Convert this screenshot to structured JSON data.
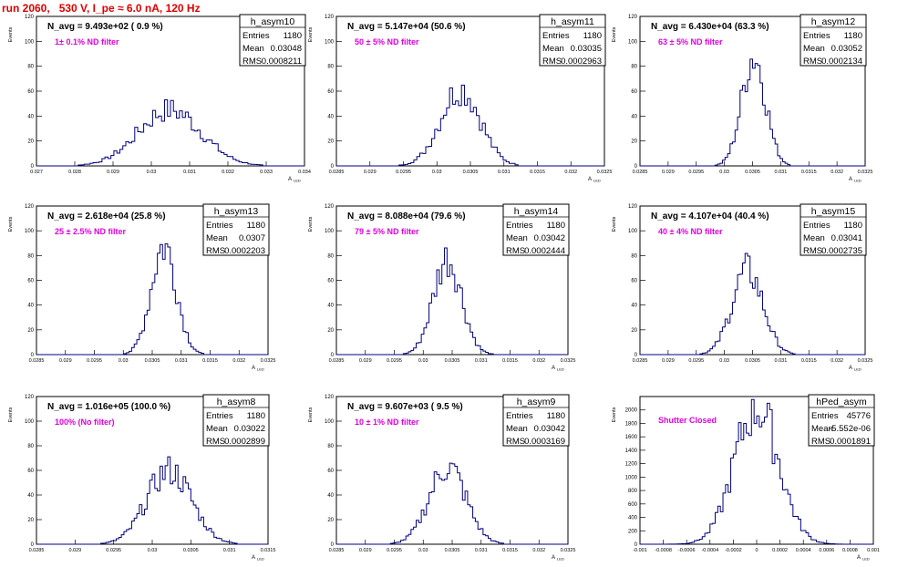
{
  "title": "run 2060,   530 V, I_pe ≈ 6.0 nA, 120 Hz",
  "ylabel": "Events",
  "xlabel": "A",
  "xlabel_sub": "LED",
  "colors": {
    "title": "#e00000",
    "filter_label": "#e000e0",
    "hist": "#000080",
    "frame": "#000000"
  },
  "chart_data": [
    {
      "type": "histogram",
      "name": "h_asym10",
      "navg": "N_avg = 9.493e+02 ( 0.9 %)",
      "filter": "1± 0.1% ND filter",
      "entries": "1180",
      "mean": "0.03048",
      "rms": "0.0008211",
      "xlim": [
        0.027,
        0.034
      ],
      "ylim": [
        0,
        120
      ],
      "xticks": [
        "0.027",
        "0.028",
        "0.029",
        "0.03",
        "0.031",
        "0.032",
        "0.033",
        "0.034"
      ],
      "yticks": [
        "0",
        "20",
        "40",
        "60",
        "80",
        "100",
        "120"
      ],
      "hist_mean": 0.03048,
      "hist_rms": 0.0008211,
      "peak": 45
    },
    {
      "type": "histogram",
      "name": "h_asym11",
      "navg": "N_avg = 5.147e+04 (50.6 %)",
      "filter": "50 ± 5% ND filter",
      "entries": "1180",
      "mean": "0.03035",
      "rms": "0.0002963",
      "xlim": [
        0.0285,
        0.0325
      ],
      "ylim": [
        0,
        120
      ],
      "xticks": [
        "0.0285",
        "0.029",
        "0.0295",
        "0.03",
        "0.0305",
        "0.031",
        "0.0315",
        "0.032",
        "0.0325"
      ],
      "yticks": [
        "0",
        "20",
        "40",
        "60",
        "80",
        "100",
        "120"
      ],
      "hist_mean": 0.03035,
      "hist_rms": 0.0002963,
      "peak": 62
    },
    {
      "type": "histogram",
      "name": "h_asym12",
      "navg": "N_avg = 6.430e+04 (63.3 %)",
      "filter": "63 ± 5% ND filter",
      "entries": "1180",
      "mean": "0.03052",
      "rms": "0.0002134",
      "xlim": [
        0.0285,
        0.0325
      ],
      "ylim": [
        0,
        120
      ],
      "xticks": [
        "0.0285",
        "0.029",
        "0.0295",
        "0.03",
        "0.0305",
        "0.031",
        "0.0315",
        "0.032",
        "0.0325"
      ],
      "yticks": [
        "0",
        "20",
        "40",
        "60",
        "80",
        "100",
        "120"
      ],
      "hist_mean": 0.03052,
      "hist_rms": 0.0002134,
      "peak": 88
    },
    {
      "type": "histogram",
      "name": "h_asym13",
      "navg": "N_avg = 2.618e+04 (25.8 %)",
      "filter": "25 ± 2.5% ND filter",
      "entries": "1180",
      "mean": "0.0307",
      "rms": "0.0002203",
      "xlim": [
        0.0285,
        0.0325
      ],
      "ylim": [
        0,
        120
      ],
      "xticks": [
        "0.0285",
        "0.029",
        "0.0295",
        "0.03",
        "0.0305",
        "0.031",
        "0.0315",
        "0.032",
        "0.0325"
      ],
      "yticks": [
        "0",
        "20",
        "40",
        "60",
        "80",
        "100",
        "120"
      ],
      "hist_mean": 0.0307,
      "hist_rms": 0.0002203,
      "peak": 88
    },
    {
      "type": "histogram",
      "name": "h_asym14",
      "navg": "N_avg = 8.088e+04 (79.6 %)",
      "filter": "79 ± 5% ND filter",
      "entries": "1180",
      "mean": "0.03042",
      "rms": "0.0002444",
      "xlim": [
        0.0285,
        0.0325
      ],
      "ylim": [
        0,
        120
      ],
      "xticks": [
        "0.0285",
        "0.029",
        "0.0295",
        "0.03",
        "0.0305",
        "0.031",
        "0.0315",
        "0.032",
        "0.0325"
      ],
      "yticks": [
        "0",
        "20",
        "40",
        "60",
        "80",
        "100",
        "120"
      ],
      "hist_mean": 0.03042,
      "hist_rms": 0.0002444,
      "peak": 78
    },
    {
      "type": "histogram",
      "name": "h_asym15",
      "navg": "N_avg = 4.107e+04 (40.4 %)",
      "filter": "40 ± 4% ND filter",
      "entries": "1180",
      "mean": "0.03041",
      "rms": "0.0002735",
      "xlim": [
        0.0285,
        0.0325
      ],
      "ylim": [
        0,
        120
      ],
      "xticks": [
        "0.0285",
        "0.029",
        "0.0295",
        "0.03",
        "0.0305",
        "0.031",
        "0.0315",
        "0.032",
        "0.0325"
      ],
      "yticks": [
        "0",
        "20",
        "40",
        "60",
        "80",
        "100",
        "120"
      ],
      "hist_mean": 0.03041,
      "hist_rms": 0.0002735,
      "peak": 68
    },
    {
      "type": "histogram",
      "name": "h_asym8",
      "navg": "N_avg = 1.016e+05 (100.0 %)",
      "filter": "100% (No filter)",
      "entries": "1180",
      "mean": "0.03022",
      "rms": "0.0002899",
      "xlim": [
        0.0285,
        0.0315
      ],
      "ylim": [
        0,
        120
      ],
      "xticks": [
        "0.0285",
        "0.029",
        "0.0295",
        "0.03",
        "0.0305",
        "0.031",
        "0.0315"
      ],
      "yticks": [
        "0",
        "20",
        "40",
        "60",
        "80",
        "100",
        "120"
      ],
      "hist_mean": 0.03022,
      "hist_rms": 0.0002899,
      "peak": 60
    },
    {
      "type": "histogram",
      "name": "h_asym9",
      "navg": "N_avg = 9.607e+03 ( 9.5 %)",
      "filter": "10 ± 1% ND filter",
      "entries": "1180",
      "mean": "0.03042",
      "rms": "0.0003169",
      "xlim": [
        0.0285,
        0.0325
      ],
      "ylim": [
        0,
        120
      ],
      "xticks": [
        "0.0285",
        "0.029",
        "0.0295",
        "0.03",
        "0.0305",
        "0.031",
        "0.0315",
        "0.032",
        "0.0325"
      ],
      "yticks": [
        "0",
        "20",
        "40",
        "60",
        "80",
        "100",
        "120"
      ],
      "hist_mean": 0.03042,
      "hist_rms": 0.0003169,
      "peak": 63
    },
    {
      "type": "histogram",
      "name": "hPed_asym",
      "navg": "",
      "filter": "Shutter Closed",
      "entries": "45776",
      "mean": "-5.552e-06",
      "rms": "0.0001891",
      "xlim": [
        -0.001,
        0.001
      ],
      "ylim": [
        0,
        2200
      ],
      "xticks": [
        "-0.001",
        "-0.0008",
        "-0.0006",
        "-0.0004",
        "-0.0002",
        "0",
        "0.0002",
        "0.0004",
        "0.0006",
        "0.0008",
        "0.001"
      ],
      "yticks": [
        "0",
        "200",
        "400",
        "600",
        "800",
        "1000",
        "1200",
        "1400",
        "1600",
        "1800",
        "2000"
      ],
      "hist_mean": 0.0,
      "hist_rms": 0.0001891,
      "peak": 2050
    }
  ]
}
